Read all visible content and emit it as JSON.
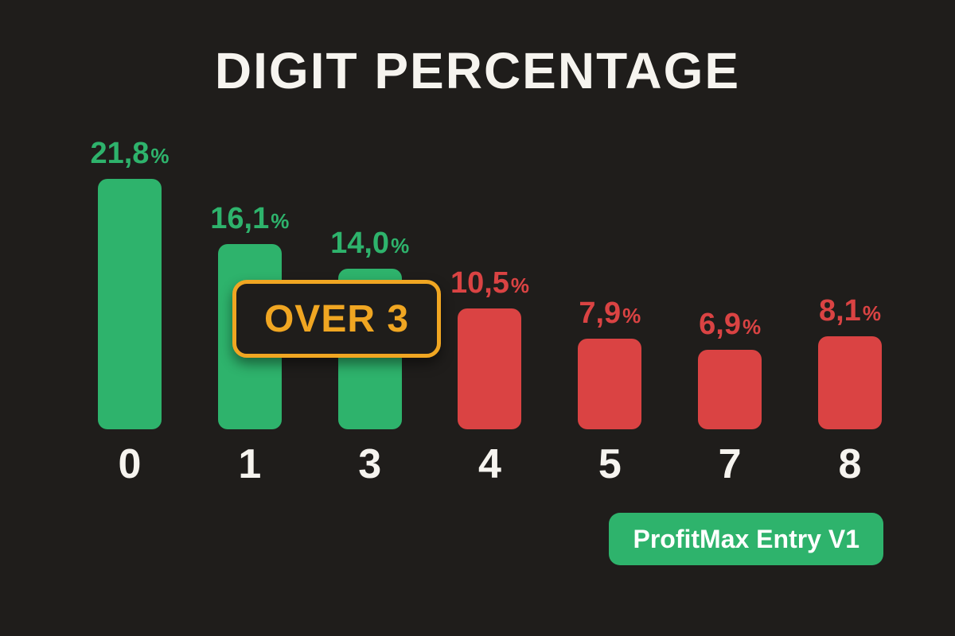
{
  "title": "DIGIT PERCENTAGE",
  "badge": {
    "label": "OVER 3"
  },
  "footer_button": {
    "label": "ProfitMax Entry V1"
  },
  "colors": {
    "background": "#1f1d1b",
    "green": "#2eb36c",
    "red": "#da4343",
    "yellow": "#f0a622",
    "text": "#f6f4ef"
  },
  "chart_data": {
    "type": "bar",
    "title": "DIGIT PERCENTAGE",
    "xlabel": "",
    "ylabel": "",
    "categories": [
      "0",
      "1",
      "3",
      "4",
      "5",
      "7",
      "8"
    ],
    "values": [
      21.8,
      16.1,
      14.0,
      10.5,
      7.9,
      6.9,
      8.1
    ],
    "value_labels": [
      "21,8",
      "16,1",
      "14,0",
      "10,5",
      "7,9",
      "6,9",
      "8,1"
    ],
    "percent_suffix": "%",
    "bar_colors": [
      "green",
      "green",
      "green",
      "red",
      "red",
      "red",
      "red"
    ],
    "ylim": [
      0,
      22
    ],
    "grid": false,
    "legend": false,
    "annotation": "OVER 3"
  }
}
